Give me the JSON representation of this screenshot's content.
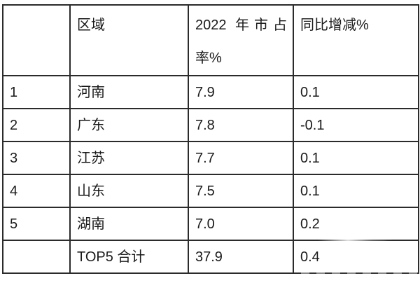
{
  "colors": {
    "background": "#ffffff",
    "border": "#2b2b2b",
    "text": "#1a1a1a"
  },
  "table": {
    "headers": {
      "rank": "",
      "region": "区域",
      "share": "2022 年市占率%",
      "yoy": "同比增减%"
    },
    "rows": [
      {
        "rank": "1",
        "region": "河南",
        "share": "7.9",
        "yoy": "0.1"
      },
      {
        "rank": "2",
        "region": "广东",
        "share": "7.8",
        "yoy": "-0.1"
      },
      {
        "rank": "3",
        "region": "江苏",
        "share": "7.7",
        "yoy": "0.1"
      },
      {
        "rank": "4",
        "region": "山东",
        "share": "7.5",
        "yoy": "0.1"
      },
      {
        "rank": "5",
        "region": "湖南",
        "share": "7.0",
        "yoy": "0.2"
      },
      {
        "rank": "",
        "region": "TOP5 合计",
        "share": "37.9",
        "yoy": "0.4"
      }
    ]
  },
  "chart_data": {
    "type": "table",
    "title": "",
    "columns": [
      "",
      "区域",
      "2022 年市占率%",
      "同比增减%"
    ],
    "rows": [
      [
        "1",
        "河南",
        7.9,
        0.1
      ],
      [
        "2",
        "广东",
        7.8,
        -0.1
      ],
      [
        "3",
        "江苏",
        7.7,
        0.1
      ],
      [
        "4",
        "山东",
        7.5,
        0.1
      ],
      [
        "5",
        "湖南",
        7.0,
        0.2
      ],
      [
        "",
        "TOP5 合计",
        37.9,
        0.4
      ]
    ]
  }
}
